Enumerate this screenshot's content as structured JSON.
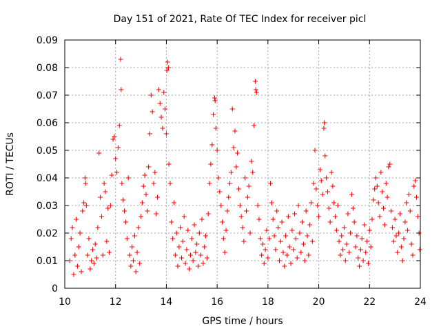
{
  "chart_data": {
    "type": "scatter",
    "title": "Day 151 of 2021, Rate Of TEC Index for receiver picl",
    "xlabel": "GPS time / hours",
    "ylabel": "ROTI / TECUs",
    "xlim": [
      10,
      24
    ],
    "ylim": [
      0,
      0.09
    ],
    "x_ticks": [
      10,
      12,
      14,
      16,
      18,
      20,
      22,
      24
    ],
    "x_tick_labels": [
      "10",
      "12",
      "14",
      "16",
      "18",
      "20",
      "22",
      "24"
    ],
    "y_ticks": [
      0,
      0.01,
      0.02,
      0.03,
      0.04,
      0.05,
      0.06,
      0.07,
      0.08,
      0.09
    ],
    "y_tick_labels": [
      "0",
      "0.01",
      "0.02",
      "0.03",
      "0.04",
      "0.05",
      "0.06",
      "0.07",
      "0.08",
      "0.09"
    ],
    "grid": true,
    "marker": "+",
    "color": "#ff0000",
    "series": [
      {
        "name": "ROTI",
        "points": [
          [
            10.2,
            0.01
          ],
          [
            10.25,
            0.018
          ],
          [
            10.3,
            0.022
          ],
          [
            10.35,
            0.005
          ],
          [
            10.4,
            0.012
          ],
          [
            10.45,
            0.025
          ],
          [
            10.5,
            0.008
          ],
          [
            10.55,
            0.015
          ],
          [
            10.6,
            0.02
          ],
          [
            10.65,
            0.006
          ],
          [
            10.7,
            0.028
          ],
          [
            10.75,
            0.031
          ],
          [
            10.8,
            0.04
          ],
          [
            10.82,
            0.038
          ],
          [
            10.85,
            0.03
          ],
          [
            10.9,
            0.012
          ],
          [
            10.95,
            0.018
          ],
          [
            11.0,
            0.007
          ],
          [
            11.05,
            0.01
          ],
          [
            11.1,
            0.014
          ],
          [
            11.15,
            0.009
          ],
          [
            11.2,
            0.016
          ],
          [
            11.25,
            0.011
          ],
          [
            11.3,
            0.022
          ],
          [
            11.35,
            0.049
          ],
          [
            11.4,
            0.033
          ],
          [
            11.45,
            0.026
          ],
          [
            11.5,
            0.012
          ],
          [
            11.55,
            0.038
          ],
          [
            11.6,
            0.035
          ],
          [
            11.65,
            0.017
          ],
          [
            11.7,
            0.029
          ],
          [
            11.75,
            0.013
          ],
          [
            11.8,
            0.03
          ],
          [
            11.85,
            0.041
          ],
          [
            11.9,
            0.054
          ],
          [
            11.95,
            0.055
          ],
          [
            12.0,
            0.047
          ],
          [
            12.05,
            0.042
          ],
          [
            12.1,
            0.051
          ],
          [
            12.15,
            0.059
          ],
          [
            12.2,
            0.083
          ],
          [
            12.22,
            0.072
          ],
          [
            12.25,
            0.038
          ],
          [
            12.3,
            0.032
          ],
          [
            12.35,
            0.028
          ],
          [
            12.4,
            0.024
          ],
          [
            12.45,
            0.018
          ],
          [
            12.5,
            0.04
          ],
          [
            12.55,
            0.012
          ],
          [
            12.6,
            0.008
          ],
          [
            12.65,
            0.015
          ],
          [
            12.7,
            0.01
          ],
          [
            12.75,
            0.019
          ],
          [
            12.8,
            0.006
          ],
          [
            12.85,
            0.013
          ],
          [
            12.9,
            0.022
          ],
          [
            12.95,
            0.009
          ],
          [
            13.0,
            0.026
          ],
          [
            13.05,
            0.031
          ],
          [
            13.1,
            0.037
          ],
          [
            13.15,
            0.041
          ],
          [
            13.2,
            0.034
          ],
          [
            13.25,
            0.028
          ],
          [
            13.3,
            0.044
          ],
          [
            13.35,
            0.056
          ],
          [
            13.4,
            0.07
          ],
          [
            13.45,
            0.064
          ],
          [
            13.5,
            0.038
          ],
          [
            13.55,
            0.042
          ],
          [
            13.6,
            0.027
          ],
          [
            13.65,
            0.033
          ],
          [
            13.7,
            0.072
          ],
          [
            13.75,
            0.067
          ],
          [
            13.8,
            0.062
          ],
          [
            13.85,
            0.058
          ],
          [
            13.9,
            0.071
          ],
          [
            13.95,
            0.065
          ],
          [
            14.0,
            0.056
          ],
          [
            14.02,
            0.079
          ],
          [
            14.05,
            0.082
          ],
          [
            14.08,
            0.08
          ],
          [
            14.1,
            0.045
          ],
          [
            14.15,
            0.038
          ],
          [
            14.2,
            0.024
          ],
          [
            14.25,
            0.018
          ],
          [
            14.3,
            0.031
          ],
          [
            14.35,
            0.012
          ],
          [
            14.4,
            0.02
          ],
          [
            14.45,
            0.008
          ],
          [
            14.5,
            0.015
          ],
          [
            14.55,
            0.022
          ],
          [
            14.6,
            0.011
          ],
          [
            14.65,
            0.017
          ],
          [
            14.7,
            0.026
          ],
          [
            14.75,
            0.009
          ],
          [
            14.8,
            0.014
          ],
          [
            14.85,
            0.021
          ],
          [
            14.9,
            0.007
          ],
          [
            14.95,
            0.012
          ],
          [
            15.0,
            0.018
          ],
          [
            15.05,
            0.01
          ],
          [
            15.1,
            0.023
          ],
          [
            15.15,
            0.013
          ],
          [
            15.2,
            0.016
          ],
          [
            15.25,
            0.008
          ],
          [
            15.3,
            0.02
          ],
          [
            15.35,
            0.012
          ],
          [
            15.4,
            0.025
          ],
          [
            15.45,
            0.009
          ],
          [
            15.5,
            0.015
          ],
          [
            15.55,
            0.019
          ],
          [
            15.6,
            0.011
          ],
          [
            15.65,
            0.027
          ],
          [
            15.7,
            0.038
          ],
          [
            15.75,
            0.045
          ],
          [
            15.8,
            0.052
          ],
          [
            15.85,
            0.063
          ],
          [
            15.9,
            0.069
          ],
          [
            15.92,
            0.068
          ],
          [
            15.95,
            0.058
          ],
          [
            16.0,
            0.05
          ],
          [
            16.05,
            0.04
          ],
          [
            16.1,
            0.035
          ],
          [
            16.15,
            0.03
          ],
          [
            16.2,
            0.024
          ],
          [
            16.25,
            0.018
          ],
          [
            16.3,
            0.013
          ],
          [
            16.35,
            0.021
          ],
          [
            16.4,
            0.028
          ],
          [
            16.45,
            0.033
          ],
          [
            16.5,
            0.038
          ],
          [
            16.55,
            0.042
          ],
          [
            16.6,
            0.065
          ],
          [
            16.65,
            0.051
          ],
          [
            16.7,
            0.057
          ],
          [
            16.75,
            0.044
          ],
          [
            16.8,
            0.049
          ],
          [
            16.85,
            0.036
          ],
          [
            16.9,
            0.03
          ],
          [
            16.95,
            0.026
          ],
          [
            17.0,
            0.022
          ],
          [
            17.05,
            0.017
          ],
          [
            17.1,
            0.04
          ],
          [
            17.15,
            0.028
          ],
          [
            17.2,
            0.033
          ],
          [
            17.25,
            0.037
          ],
          [
            17.3,
            0.02
          ],
          [
            17.35,
            0.046
          ],
          [
            17.4,
            0.042
          ],
          [
            17.45,
            0.059
          ],
          [
            17.5,
            0.075
          ],
          [
            17.52,
            0.072
          ],
          [
            17.55,
            0.071
          ],
          [
            17.6,
            0.03
          ],
          [
            17.65,
            0.025
          ],
          [
            17.7,
            0.018
          ],
          [
            17.75,
            0.012
          ],
          [
            17.8,
            0.016
          ],
          [
            17.85,
            0.009
          ],
          [
            17.9,
            0.014
          ],
          [
            17.95,
            0.021
          ],
          [
            18.0,
            0.011
          ],
          [
            18.05,
            0.018
          ],
          [
            18.1,
            0.038
          ],
          [
            18.15,
            0.031
          ],
          [
            18.2,
            0.025
          ],
          [
            18.25,
            0.019
          ],
          [
            18.3,
            0.014
          ],
          [
            18.35,
            0.028
          ],
          [
            18.4,
            0.022
          ],
          [
            18.45,
            0.01
          ],
          [
            18.5,
            0.017
          ],
          [
            18.55,
            0.024
          ],
          [
            18.6,
            0.013
          ],
          [
            18.65,
            0.008
          ],
          [
            18.7,
            0.019
          ],
          [
            18.75,
            0.012
          ],
          [
            18.8,
            0.026
          ],
          [
            18.85,
            0.015
          ],
          [
            18.9,
            0.009
          ],
          [
            18.95,
            0.021
          ],
          [
            19.0,
            0.014
          ],
          [
            19.05,
            0.027
          ],
          [
            19.1,
            0.018
          ],
          [
            19.15,
            0.011
          ],
          [
            19.2,
            0.03
          ],
          [
            19.25,
            0.02
          ],
          [
            19.3,
            0.013
          ],
          [
            19.35,
            0.024
          ],
          [
            19.4,
            0.016
          ],
          [
            19.45,
            0.01
          ],
          [
            19.5,
            0.028
          ],
          [
            19.55,
            0.019
          ],
          [
            19.6,
            0.012
          ],
          [
            19.65,
            0.023
          ],
          [
            19.7,
            0.031
          ],
          [
            19.75,
            0.017
          ],
          [
            19.8,
            0.038
          ],
          [
            19.85,
            0.05
          ],
          [
            19.9,
            0.036
          ],
          [
            19.95,
            0.03
          ],
          [
            20.0,
            0.026
          ],
          [
            20.05,
            0.043
          ],
          [
            20.1,
            0.039
          ],
          [
            20.15,
            0.034
          ],
          [
            20.2,
            0.058
          ],
          [
            20.22,
            0.06
          ],
          [
            20.25,
            0.048
          ],
          [
            20.3,
            0.04
          ],
          [
            20.35,
            0.035
          ],
          [
            20.4,
            0.029
          ],
          [
            20.45,
            0.024
          ],
          [
            20.5,
            0.042
          ],
          [
            20.55,
            0.037
          ],
          [
            20.6,
            0.031
          ],
          [
            20.65,
            0.026
          ],
          [
            20.7,
            0.021
          ],
          [
            20.75,
            0.03
          ],
          [
            20.8,
            0.017
          ],
          [
            20.85,
            0.012
          ],
          [
            20.9,
            0.019
          ],
          [
            20.95,
            0.014
          ],
          [
            21.0,
            0.022
          ],
          [
            21.05,
            0.01
          ],
          [
            21.1,
            0.016
          ],
          [
            21.15,
            0.027
          ],
          [
            21.2,
            0.013
          ],
          [
            21.25,
            0.02
          ],
          [
            21.3,
            0.034
          ],
          [
            21.35,
            0.029
          ],
          [
            21.4,
            0.024
          ],
          [
            21.45,
            0.015
          ],
          [
            21.5,
            0.019
          ],
          [
            21.55,
            0.011
          ],
          [
            21.6,
            0.008
          ],
          [
            21.65,
            0.014
          ],
          [
            21.7,
            0.018
          ],
          [
            21.75,
            0.01
          ],
          [
            21.8,
            0.023
          ],
          [
            21.85,
            0.013
          ],
          [
            21.9,
            0.017
          ],
          [
            21.95,
            0.009
          ],
          [
            22.0,
            0.021
          ],
          [
            22.05,
            0.015
          ],
          [
            22.1,
            0.025
          ],
          [
            22.15,
            0.032
          ],
          [
            22.2,
            0.036
          ],
          [
            22.25,
            0.04
          ],
          [
            22.3,
            0.037
          ],
          [
            22.35,
            0.031
          ],
          [
            22.4,
            0.026
          ],
          [
            22.45,
            0.042
          ],
          [
            22.5,
            0.035
          ],
          [
            22.55,
            0.029
          ],
          [
            22.6,
            0.023
          ],
          [
            22.65,
            0.038
          ],
          [
            22.7,
            0.033
          ],
          [
            22.75,
            0.044
          ],
          [
            22.8,
            0.045
          ],
          [
            22.85,
            0.028
          ],
          [
            22.9,
            0.022
          ],
          [
            22.95,
            0.017
          ],
          [
            23.0,
            0.025
          ],
          [
            23.05,
            0.019
          ],
          [
            23.1,
            0.013
          ],
          [
            23.15,
            0.02
          ],
          [
            23.2,
            0.027
          ],
          [
            23.25,
            0.015
          ],
          [
            23.3,
            0.01
          ],
          [
            23.35,
            0.018
          ],
          [
            23.4,
            0.024
          ],
          [
            23.45,
            0.031
          ],
          [
            23.5,
            0.021
          ],
          [
            23.55,
            0.034
          ],
          [
            23.6,
            0.028
          ],
          [
            23.65,
            0.016
          ],
          [
            23.7,
            0.012
          ],
          [
            23.75,
            0.037
          ],
          [
            23.8,
            0.039
          ],
          [
            23.85,
            0.033
          ],
          [
            23.9,
            0.026
          ],
          [
            23.95,
            0.02
          ],
          [
            23.98,
            0.014
          ]
        ]
      }
    ]
  }
}
